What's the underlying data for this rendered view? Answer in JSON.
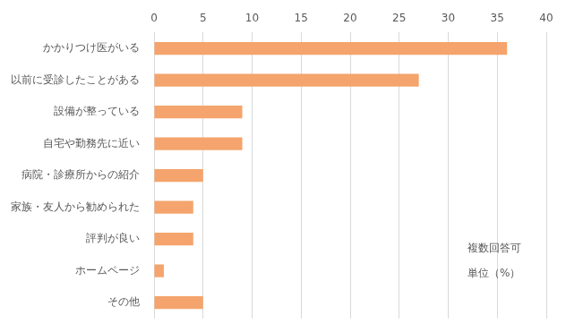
{
  "chart_data": {
    "type": "bar",
    "orientation": "horizontal",
    "categories": [
      "かかりつけ医がいる",
      "以前に受診したことがある",
      "設備が整っている",
      "自宅や勤務先に近い",
      "病院・診療所からの紹介",
      "家族・友人から勧められた",
      "評判が良い",
      "ホームページ",
      "その他"
    ],
    "values": [
      36,
      27,
      9,
      9,
      5,
      4,
      4,
      1,
      5
    ],
    "color": "#f4a46c",
    "xlim": [
      0,
      40
    ],
    "xticks": [
      0,
      5,
      10,
      15,
      20,
      25,
      30,
      35,
      40
    ],
    "grid": true,
    "annotations": [
      "複数回答可",
      "単位（%）"
    ]
  }
}
